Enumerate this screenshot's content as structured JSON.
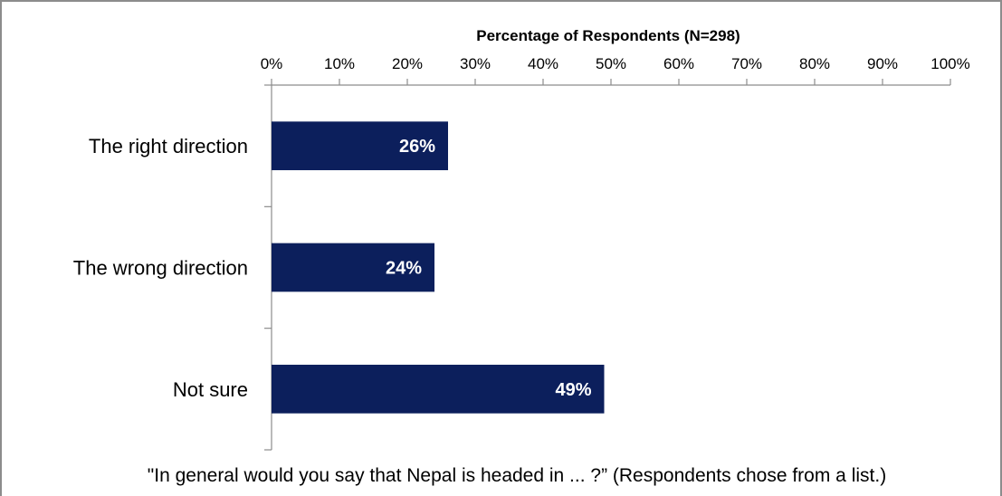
{
  "chart_data": {
    "type": "bar",
    "orientation": "horizontal",
    "categories": [
      "The right direction",
      "The wrong direction",
      "Not sure"
    ],
    "values": [
      26,
      24,
      49
    ],
    "data_labels": [
      "26%",
      "24%",
      "49%"
    ],
    "xlabel": "Percentage of Respondents (N=298)",
    "xlim": [
      0,
      100
    ],
    "x_ticks": [
      "0%",
      "10%",
      "20%",
      "30%",
      "40%",
      "50%",
      "60%",
      "70%",
      "80%",
      "90%",
      "100%"
    ],
    "x_axis_position": "top",
    "grid": false,
    "legend": "none",
    "caption": "\"In general would you say that Nepal is headed in ... ?” (Respondents chose from a list.)",
    "colors": {
      "bar": "#0c1f5c",
      "data_label": "#ffffff",
      "axis": "#8c8c8c"
    }
  }
}
